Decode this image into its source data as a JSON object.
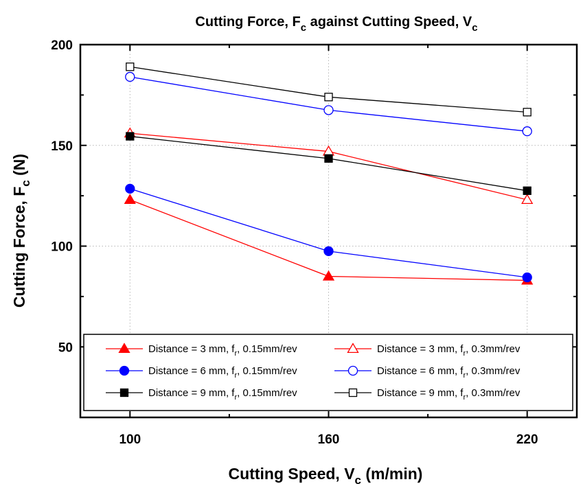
{
  "chart_data": {
    "type": "line",
    "title": {
      "main": "Cutting Force, F",
      "sub": "c",
      "rest": " against Cutting Speed, V",
      "sub2": "c"
    },
    "xlabel": {
      "main": "Cutting Speed, V",
      "sub": "c",
      "rest": " (m/min)"
    },
    "ylabel": {
      "main": "Cutting Force, F",
      "sub": "c",
      "rest": " (N)"
    },
    "x": [
      100,
      160,
      220
    ],
    "xlim": [
      85,
      235
    ],
    "ylim": [
      15,
      200
    ],
    "xticks": [
      100,
      160,
      220
    ],
    "xminor": [
      130,
      190
    ],
    "yticks": [
      50,
      100,
      150,
      200
    ],
    "yminor": [
      75,
      125,
      175
    ],
    "grid": true,
    "legend_position": "bottom",
    "series": [
      {
        "name_main": "Distance = 3 mm, f",
        "name_sub": "r",
        "name_rest": ", 0.15mm/rev",
        "color": "#ff0000",
        "marker": "triangle",
        "filled": true,
        "values": [
          123,
          85,
          83
        ]
      },
      {
        "name_main": "Distance = 3 mm, f",
        "name_sub": "r",
        "name_rest": ", 0.3mm/rev",
        "color": "#ff0000",
        "marker": "triangle",
        "filled": false,
        "values": [
          156,
          147,
          123
        ]
      },
      {
        "name_main": "Distance = 6 mm, f",
        "name_sub": "r",
        "name_rest": ", 0.15mm/rev",
        "color": "#0000ff",
        "marker": "circle",
        "filled": true,
        "values": [
          128.5,
          97.5,
          84.5
        ]
      },
      {
        "name_main": "Distance = 6 mm, f",
        "name_sub": "r",
        "name_rest": ", 0.3mm/rev",
        "color": "#0000ff",
        "marker": "circle",
        "filled": false,
        "values": [
          184,
          167.5,
          157
        ]
      },
      {
        "name_main": "Distance = 9 mm, f",
        "name_sub": "r",
        "name_rest": ", 0.15mm/rev",
        "color": "#000000",
        "marker": "square",
        "filled": true,
        "values": [
          154.5,
          143.5,
          127.5
        ]
      },
      {
        "name_main": "Distance = 9 mm, f",
        "name_sub": "r",
        "name_rest": ", 0.3mm/rev",
        "color": "#000000",
        "marker": "square",
        "filled": false,
        "values": [
          189,
          174,
          166.5
        ]
      }
    ]
  }
}
